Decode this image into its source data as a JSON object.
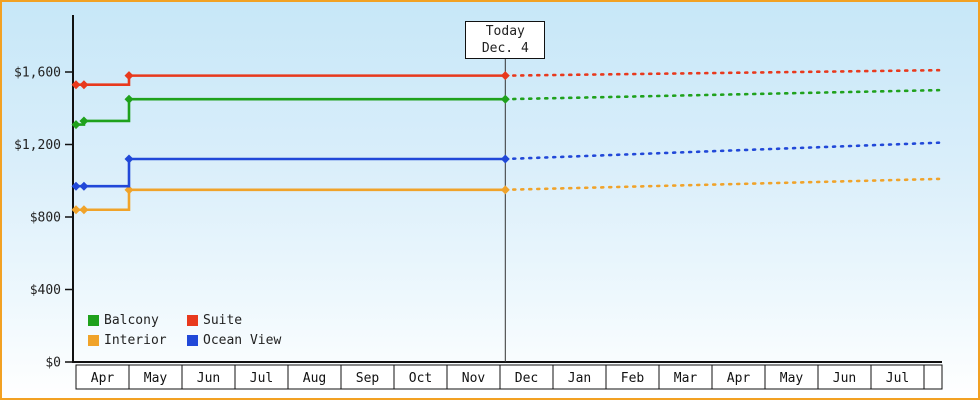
{
  "colors": {
    "frame": "#f2a123",
    "axis": "#111111"
  },
  "chart_data": {
    "type": "line",
    "x_axis": {
      "unit": "month",
      "labels": [
        "Apr",
        "May",
        "Jun",
        "Jul",
        "Aug",
        "Sep",
        "Oct",
        "Nov",
        "Dec",
        "Jan",
        "Feb",
        "Mar",
        "Apr",
        "May",
        "Jun",
        "Jul"
      ]
    },
    "y_axis": {
      "range": [
        0,
        1600
      ],
      "ticks": [
        0,
        400,
        800,
        1200,
        1600
      ],
      "tick_labels": [
        "$0",
        "$400",
        "$800",
        "$1,200",
        "$1,600"
      ]
    },
    "today": {
      "label": "Today",
      "date": "Dec. 4",
      "month_index": 8.1
    },
    "series": [
      {
        "name": "Balcony",
        "color": "#1fa11c",
        "history": [
          {
            "month": 0.0,
            "price": 1310
          },
          {
            "month": 0.15,
            "price": 1330
          },
          {
            "month": 1.0,
            "price": 1450
          }
        ],
        "price_at_today": 1450,
        "projected_end_price": 1500
      },
      {
        "name": "Suite",
        "color": "#e8391d",
        "history": [
          {
            "month": 0.0,
            "price": 1530
          },
          {
            "month": 0.15,
            "price": 1530
          },
          {
            "month": 1.0,
            "price": 1580
          }
        ],
        "price_at_today": 1580,
        "projected_end_price": 1610
      },
      {
        "name": "Interior",
        "color": "#f0a32a",
        "history": [
          {
            "month": 0.0,
            "price": 840
          },
          {
            "month": 0.15,
            "price": 840
          },
          {
            "month": 1.0,
            "price": 950
          }
        ],
        "price_at_today": 950,
        "projected_end_price": 1010
      },
      {
        "name": "Ocean View",
        "color": "#2148d8",
        "history": [
          {
            "month": 0.0,
            "price": 970
          },
          {
            "month": 0.15,
            "price": 970
          },
          {
            "month": 1.0,
            "price": 1120
          }
        ],
        "price_at_today": 1120,
        "projected_end_price": 1210
      }
    ],
    "legend_position": "bottom-left",
    "grid": false
  }
}
